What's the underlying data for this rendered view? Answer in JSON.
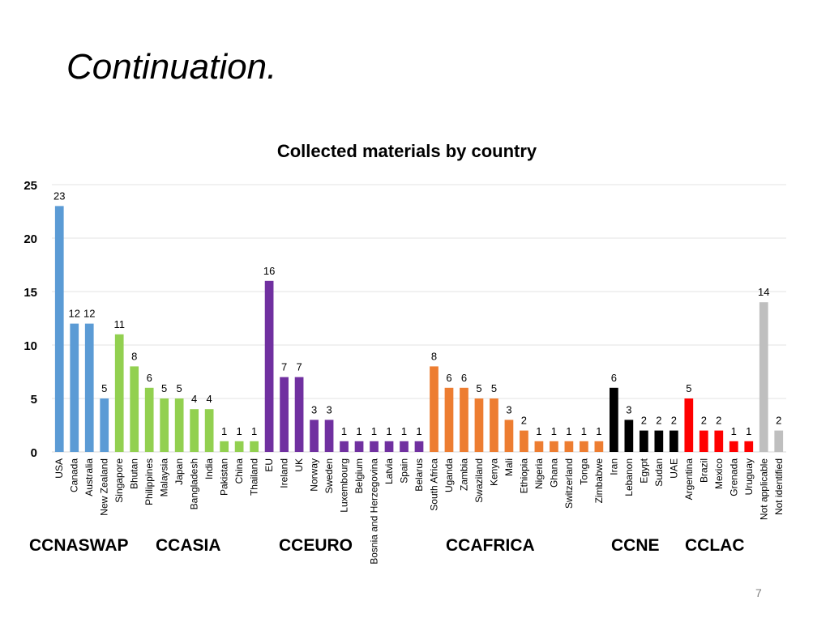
{
  "slide": {
    "title": "Continuation.",
    "page_number": "7"
  },
  "chart_data": {
    "type": "bar",
    "title": "Collected materials by country",
    "xlabel": "",
    "ylabel": "",
    "ylim": [
      0,
      25
    ],
    "yticks": [
      0,
      5,
      10,
      15,
      20,
      25
    ],
    "grid": true,
    "categories": [
      "USA",
      "Canada",
      "Australia",
      "New Zealand",
      "Singapore",
      "Bhutan",
      "Philippines",
      "Malaysia",
      "Japan",
      "Bangladesh",
      "India",
      "Pakistan",
      "China",
      "Thailand",
      "EU",
      "Ireland",
      "UK",
      "Norway",
      "Sweden",
      "Luxembourg",
      "Belgium",
      "Bosnia and Herzegovina",
      "Latvia",
      "Spain",
      "Belarus",
      "South Africa",
      "Uganda",
      "Zambia",
      "Swaziland",
      "Kenya",
      "Mali",
      "Ethiopia",
      "Nigeria",
      "Ghana",
      "Switzerland",
      "Tonga",
      "Zimbabwe",
      "Iran",
      "Lebanon",
      "Egypt",
      "Sudan",
      "UAE",
      "Argentina",
      "Brazil",
      "Mexico",
      "Grenada",
      "Uruguay",
      "Not applicable",
      "Not identified"
    ],
    "values": [
      23,
      12,
      12,
      5,
      11,
      8,
      6,
      5,
      5,
      4,
      4,
      1,
      1,
      1,
      16,
      7,
      7,
      3,
      3,
      1,
      1,
      1,
      1,
      1,
      1,
      8,
      6,
      6,
      5,
      5,
      3,
      2,
      1,
      1,
      1,
      1,
      1,
      6,
      3,
      2,
      2,
      2,
      5,
      2,
      2,
      1,
      1,
      14,
      2
    ],
    "bar_colors": [
      "#5b9bd5",
      "#5b9bd5",
      "#5b9bd5",
      "#5b9bd5",
      "#92d050",
      "#92d050",
      "#92d050",
      "#92d050",
      "#92d050",
      "#92d050",
      "#92d050",
      "#92d050",
      "#92d050",
      "#92d050",
      "#7030a0",
      "#7030a0",
      "#7030a0",
      "#7030a0",
      "#7030a0",
      "#7030a0",
      "#7030a0",
      "#7030a0",
      "#7030a0",
      "#7030a0",
      "#7030a0",
      "#ed7d31",
      "#ed7d31",
      "#ed7d31",
      "#ed7d31",
      "#ed7d31",
      "#ed7d31",
      "#ed7d31",
      "#ed7d31",
      "#ed7d31",
      "#ed7d31",
      "#ed7d31",
      "#ed7d31",
      "#000000",
      "#000000",
      "#000000",
      "#000000",
      "#000000",
      "#ff0000",
      "#ff0000",
      "#ff0000",
      "#ff0000",
      "#ff0000",
      "#bfbfbf",
      "#bfbfbf"
    ],
    "groups": [
      {
        "label": "CCNASWAP"
      },
      {
        "label": "CCASIA"
      },
      {
        "label": "CCEURO"
      },
      {
        "label": "CCAFRICA"
      },
      {
        "label": "CCNE"
      },
      {
        "label": "CCLAC"
      }
    ]
  }
}
